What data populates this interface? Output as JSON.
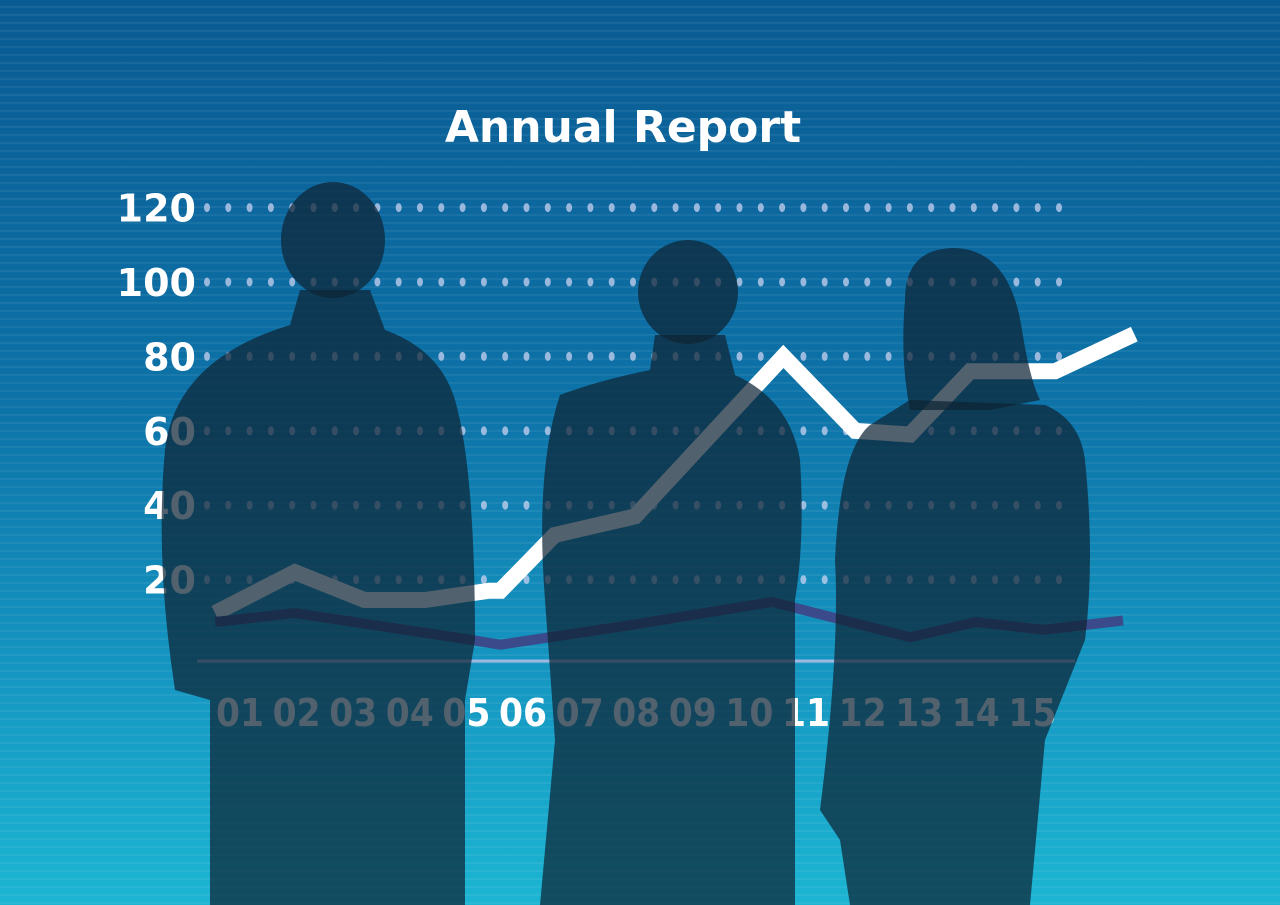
{
  "chart_data": {
    "type": "line",
    "title": "Annual Report",
    "categories": [
      "01",
      "02",
      "03",
      "04",
      "05",
      "06",
      "07",
      "08",
      "09",
      "10",
      "11",
      "12",
      "13",
      "14",
      "15"
    ],
    "yticks": [
      "120",
      "100",
      "80",
      "60",
      "40",
      "20"
    ],
    "ylim": [
      0,
      120
    ],
    "grid": "dotted horizontal",
    "legend": "none",
    "series": [
      {
        "color": "#ffffff",
        "points": [
          [
            0.56,
            11
          ],
          [
            1.97,
            22
          ],
          [
            3.2,
            14.5
          ],
          [
            4.27,
            14.5
          ],
          [
            5.4,
            17
          ],
          [
            5.6,
            17
          ],
          [
            6.56,
            32
          ],
          [
            7.98,
            37
          ],
          [
            10.6,
            80
          ],
          [
            11.87,
            60
          ],
          [
            12.84,
            59
          ],
          [
            13.9,
            76
          ],
          [
            15.4,
            76
          ],
          [
            16.8,
            86
          ]
        ]
      },
      {
        "color": "#3a4a8a",
        "points": [
          [
            0.56,
            8.6
          ],
          [
            1.97,
            11
          ],
          [
            5.0,
            4
          ],
          [
            5.6,
            2.5
          ],
          [
            8.0,
            8
          ],
          [
            10.4,
            14
          ],
          [
            12.84,
            4.5
          ],
          [
            14.0,
            8.6
          ],
          [
            15.2,
            6.5
          ],
          [
            16.6,
            9
          ]
        ]
      }
    ],
    "colors": {
      "background_top": "#0a5b93",
      "background_bottom": "#1cb5d2",
      "silhouette": "#0e2a3c"
    }
  }
}
